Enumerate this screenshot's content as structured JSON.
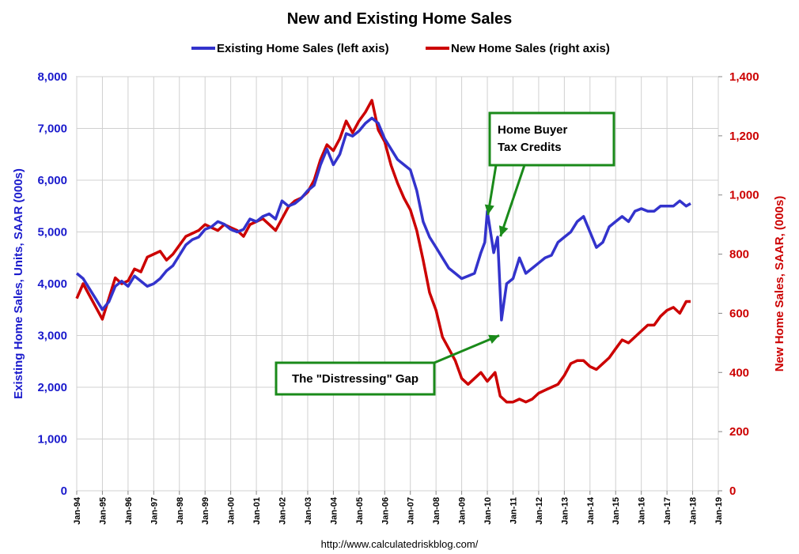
{
  "chart_data": {
    "type": "line",
    "title": "New and Existing Home Sales",
    "ylabel_left": "Existing Home Sales, Units, SAAR (000s)",
    "ylabel_right": "New Home Sales, SAAR, (000s)",
    "ylim_left": [
      0,
      8000
    ],
    "ylim_right": [
      0,
      1400
    ],
    "yticks_left": [
      "0",
      "1,000",
      "2,000",
      "3,000",
      "4,000",
      "5,000",
      "6,000",
      "7,000",
      "8,000"
    ],
    "yticks_right": [
      "0",
      "200",
      "400",
      "600",
      "800",
      "1,000",
      "1,200",
      "1,400"
    ],
    "x_tick_labels": [
      "Jan-94",
      "Jan-95",
      "Jan-96",
      "Jan-97",
      "Jan-98",
      "Jan-99",
      "Jan-00",
      "Jan-01",
      "Jan-02",
      "Jan-03",
      "Jan-04",
      "Jan-05",
      "Jan-06",
      "Jan-07",
      "Jan-08",
      "Jan-09",
      "Jan-10",
      "Jan-11",
      "Jan-12",
      "Jan-13",
      "Jan-14",
      "Jan-15",
      "Jan-16",
      "Jan-17",
      "Jan-18",
      "Jan-19"
    ],
    "xlim": [
      1994.0,
      2019.0
    ],
    "grid": true,
    "legend_position": "top",
    "colors": {
      "existing": "#3333cc",
      "new": "#cc0000",
      "annotation": "#1a8a1a"
    },
    "series": [
      {
        "name": "Existing Home Sales (left axis)",
        "axis": "left",
        "x": [
          1994.0,
          1994.25,
          1994.5,
          1994.75,
          1995.0,
          1995.25,
          1995.5,
          1995.75,
          1996.0,
          1996.25,
          1996.5,
          1996.75,
          1997.0,
          1997.25,
          1997.5,
          1997.75,
          1998.0,
          1998.25,
          1998.5,
          1998.75,
          1999.0,
          1999.25,
          1999.5,
          1999.75,
          2000.0,
          2000.25,
          2000.5,
          2000.75,
          2001.0,
          2001.25,
          2001.5,
          2001.75,
          2002.0,
          2002.25,
          2002.5,
          2002.75,
          2003.0,
          2003.25,
          2003.5,
          2003.75,
          2004.0,
          2004.25,
          2004.5,
          2004.75,
          2005.0,
          2005.25,
          2005.5,
          2005.75,
          2006.0,
          2006.25,
          2006.5,
          2006.75,
          2007.0,
          2007.25,
          2007.5,
          2007.75,
          2008.0,
          2008.25,
          2008.5,
          2008.75,
          2009.0,
          2009.25,
          2009.5,
          2009.75,
          2009.9,
          2010.0,
          2010.25,
          2010.4,
          2010.55,
          2010.75,
          2011.0,
          2011.25,
          2011.5,
          2011.75,
          2012.0,
          2012.25,
          2012.5,
          2012.75,
          2013.0,
          2013.25,
          2013.5,
          2013.75,
          2014.0,
          2014.25,
          2014.5,
          2014.75,
          2015.0,
          2015.25,
          2015.5,
          2015.75,
          2016.0,
          2016.25,
          2016.5,
          2016.75,
          2017.0,
          2017.25,
          2017.5,
          2017.75,
          2017.92
        ],
        "values": [
          4200,
          4100,
          3900,
          3700,
          3500,
          3650,
          3950,
          4050,
          3950,
          4150,
          4050,
          3950,
          4000,
          4100,
          4250,
          4350,
          4550,
          4750,
          4850,
          4900,
          5050,
          5100,
          5200,
          5150,
          5050,
          5000,
          5050,
          5250,
          5200,
          5300,
          5350,
          5250,
          5600,
          5500,
          5550,
          5650,
          5800,
          5900,
          6300,
          6600,
          6300,
          6500,
          6900,
          6850,
          6950,
          7100,
          7200,
          7100,
          6800,
          6600,
          6400,
          6300,
          6200,
          5800,
          5200,
          4900,
          4700,
          4500,
          4300,
          4200,
          4100,
          4150,
          4200,
          4600,
          4800,
          5400,
          4600,
          4900,
          3300,
          4000,
          4100,
          4500,
          4200,
          4300,
          4400,
          4500,
          4550,
          4800,
          4900,
          5000,
          5200,
          5300,
          5000,
          4700,
          4800,
          5100,
          5200,
          5300,
          5200,
          5400,
          5450,
          5400,
          5400,
          5500,
          5500,
          5500,
          5600,
          5500,
          5550
        ]
      },
      {
        "name": "New Home Sales (right axis)",
        "axis": "right",
        "x": [
          1994.0,
          1994.25,
          1994.5,
          1994.75,
          1995.0,
          1995.25,
          1995.5,
          1995.75,
          1996.0,
          1996.25,
          1996.5,
          1996.75,
          1997.0,
          1997.25,
          1997.5,
          1997.75,
          1998.0,
          1998.25,
          1998.5,
          1998.75,
          1999.0,
          1999.25,
          1999.5,
          1999.75,
          2000.0,
          2000.25,
          2000.5,
          2000.75,
          2001.0,
          2001.25,
          2001.5,
          2001.75,
          2002.0,
          2002.25,
          2002.5,
          2002.75,
          2003.0,
          2003.25,
          2003.5,
          2003.75,
          2004.0,
          2004.25,
          2004.5,
          2004.75,
          2005.0,
          2005.25,
          2005.5,
          2005.75,
          2006.0,
          2006.25,
          2006.5,
          2006.75,
          2007.0,
          2007.25,
          2007.5,
          2007.75,
          2008.0,
          2008.25,
          2008.5,
          2008.75,
          2009.0,
          2009.25,
          2009.5,
          2009.75,
          2010.0,
          2010.3,
          2010.5,
          2010.75,
          2011.0,
          2011.25,
          2011.5,
          2011.75,
          2012.0,
          2012.25,
          2012.5,
          2012.75,
          2013.0,
          2013.25,
          2013.5,
          2013.75,
          2014.0,
          2014.25,
          2014.5,
          2014.75,
          2015.0,
          2015.25,
          2015.5,
          2015.75,
          2016.0,
          2016.25,
          2016.5,
          2016.75,
          2017.0,
          2017.25,
          2017.5,
          2017.75,
          2017.92
        ],
        "values": [
          650,
          700,
          660,
          620,
          580,
          650,
          720,
          700,
          710,
          750,
          740,
          790,
          800,
          810,
          780,
          800,
          830,
          860,
          870,
          880,
          900,
          890,
          880,
          900,
          890,
          880,
          860,
          900,
          910,
          920,
          900,
          880,
          920,
          960,
          980,
          990,
          1010,
          1050,
          1120,
          1170,
          1150,
          1190,
          1250,
          1210,
          1250,
          1280,
          1320,
          1220,
          1180,
          1100,
          1040,
          990,
          950,
          880,
          780,
          670,
          610,
          520,
          480,
          440,
          380,
          360,
          380,
          400,
          370,
          400,
          320,
          300,
          300,
          310,
          300,
          310,
          330,
          340,
          350,
          360,
          390,
          430,
          440,
          440,
          420,
          410,
          430,
          450,
          480,
          510,
          500,
          520,
          540,
          560,
          560,
          590,
          610,
          620,
          600,
          640,
          640
        ]
      }
    ],
    "annotations": [
      {
        "text_lines": [
          "Home Buyer",
          "Tax Credits"
        ],
        "arrows_to": [
          [
            2009.9,
            5450
          ],
          [
            2010.45,
            5250
          ]
        ]
      },
      {
        "text_lines": [
          "The \"Distressing\" Gap"
        ],
        "arrows_to": [
          [
            2010.4,
            3000
          ]
        ]
      }
    ],
    "source": "http://www.calculatedriskblog.com/"
  }
}
